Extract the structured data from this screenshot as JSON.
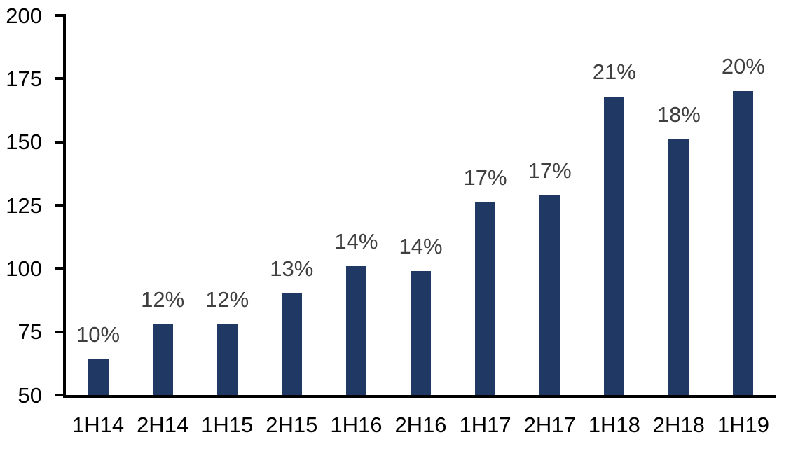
{
  "chart_data": {
    "type": "bar",
    "title": "",
    "xlabel": "",
    "ylabel": "",
    "categories": [
      "1H14",
      "2H14",
      "1H15",
      "2H15",
      "1H16",
      "2H16",
      "1H17",
      "2H17",
      "1H18",
      "2H18",
      "1H19"
    ],
    "values": [
      64,
      78,
      78,
      90,
      101,
      99,
      126,
      129,
      168,
      151,
      170
    ],
    "data_labels": [
      "10%",
      "12%",
      "12%",
      "13%",
      "14%",
      "14%",
      "17%",
      "17%",
      "21%",
      "18%",
      "20%"
    ],
    "ylim": [
      50,
      200
    ],
    "yticks": [
      50,
      75,
      100,
      125,
      150,
      175,
      200
    ],
    "grid": false,
    "legend": null,
    "colors": {
      "bar_fill": "#1F3864",
      "data_label_text": "#3F3F3F",
      "axis_text": "#000000",
      "axis_line": "#000000",
      "background": "#FFFFFF"
    }
  }
}
